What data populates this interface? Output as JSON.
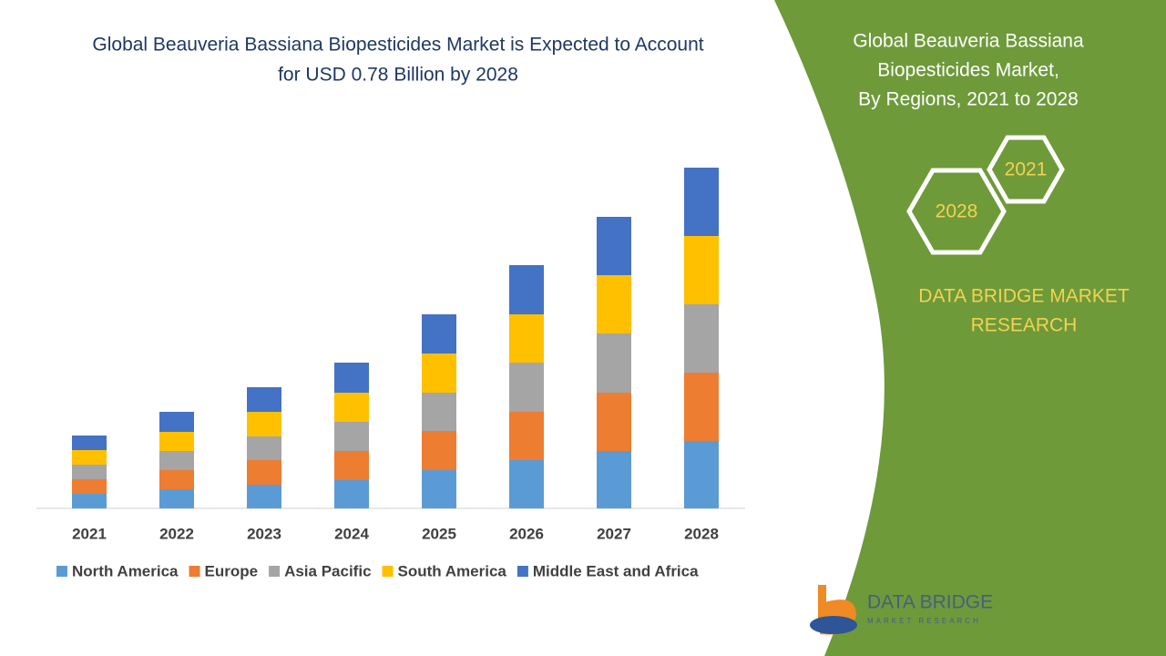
{
  "chart_data": {
    "type": "stacked_bar",
    "title": [
      "Global Beauveria Bassiana Biopesticides Market is Expected to Account",
      "for USD 0.78 Billion by 2028"
    ],
    "categories": [
      "2021",
      "2022",
      "2023",
      "2024",
      "2025",
      "2026",
      "2027",
      "2028"
    ],
    "series": [
      {
        "name": "North America",
        "color": "#5b9bd5",
        "values": [
          16,
          21,
          26,
          31,
          42,
          53,
          63,
          74
        ]
      },
      {
        "name": "Europe",
        "color": "#ed7d31",
        "values": [
          16,
          21,
          27,
          32,
          43,
          53,
          64,
          75
        ]
      },
      {
        "name": "Asia Pacific",
        "color": "#a5a5a5",
        "values": [
          16,
          21,
          26,
          32,
          42,
          54,
          65,
          75
        ]
      },
      {
        "name": "South America",
        "color": "#ffc000",
        "values": [
          16,
          21,
          27,
          32,
          43,
          53,
          64,
          75
        ]
      },
      {
        "name": "Middle East and Africa",
        "color": "#4472c4",
        "values": [
          16,
          22,
          27,
          33,
          43,
          54,
          64,
          75
        ]
      }
    ]
  },
  "panel": {
    "title": [
      "Global Beauveria Bassiana",
      "Biopesticides Market,",
      "By Regions, 2021 to 2028"
    ],
    "hex_start": "2021",
    "hex_end": "2028",
    "brand": [
      "DATA BRIDGE MARKET",
      "RESEARCH"
    ],
    "logo_name": "DATA BRIDGE",
    "logo_tagline": "MARKET RESEARCH"
  }
}
